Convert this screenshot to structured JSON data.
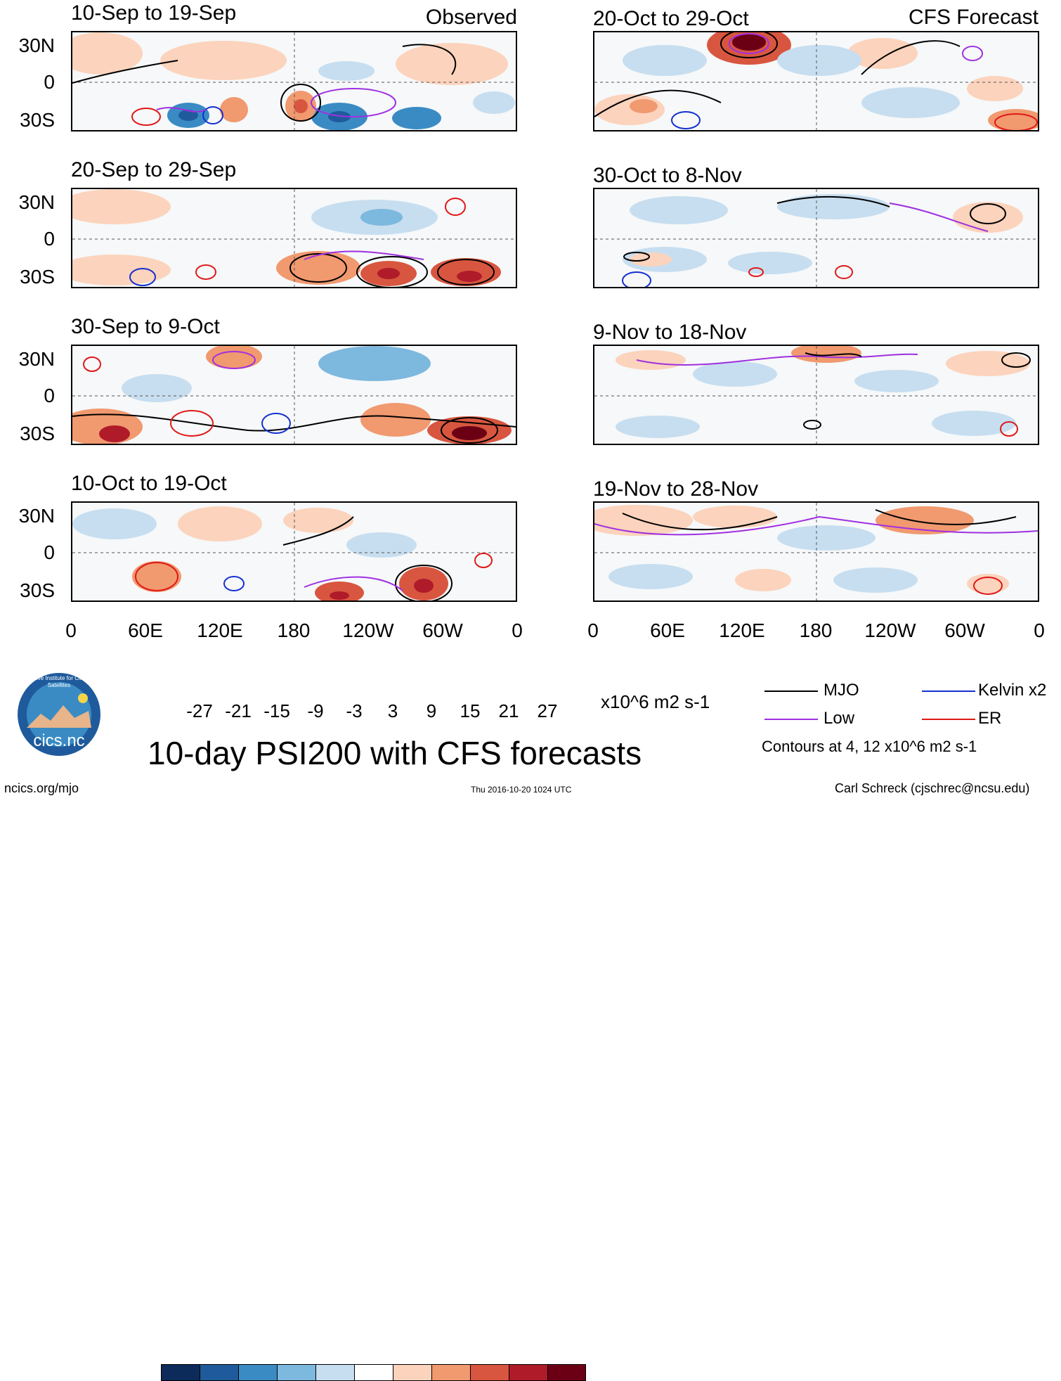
{
  "panels": {
    "obs1_title": "10-Sep to 19-Sep",
    "obs1_tag": "Observed",
    "obs2_title": "20-Sep to 29-Sep",
    "obs3_title": "30-Sep to 9-Oct",
    "obs4_title": "10-Oct to 19-Oct",
    "fc1_title": "20-Oct to 29-Oct",
    "fc1_tag": "CFS Forecast",
    "fc2_title": "30-Oct to 8-Nov",
    "fc3_title": "9-Nov to 18-Nov",
    "fc4_title": "19-Nov to 28-Nov"
  },
  "lat_labels": [
    "30N",
    "0",
    "30S"
  ],
  "lon_labels": [
    "0",
    "60E",
    "120E",
    "180",
    "120W",
    "60W",
    "0"
  ],
  "colorbar": {
    "colors": [
      "#0d2b5a",
      "#1f5b9c",
      "#3a8bc4",
      "#7db8de",
      "#c7def0",
      "#ffffff",
      "#fcd3bc",
      "#f1996f",
      "#d8563f",
      "#b01b2a",
      "#6b0014"
    ],
    "ticks": [
      "-27",
      "-21",
      "-15",
      "-9",
      "-3",
      "3",
      "9",
      "15",
      "21",
      "27"
    ],
    "units": "x10^6 m2 s-1"
  },
  "main_title": "10-day PSI200 with CFS forecasts",
  "legend": {
    "mjo": "MJO",
    "kelvin": "Kelvin x2",
    "low": "Low",
    "er": "ER",
    "mjo_color": "#000000",
    "kelvin_color": "#1530d0",
    "low_color": "#a030e0",
    "er_color": "#e01818",
    "note": "Contours at 4, 12 x10^6 m2 s-1"
  },
  "logo": {
    "ring_text": "Cooperative Institute for Climate and Satellites",
    "name": "cics.nc"
  },
  "footer": {
    "url": "ncics.org/mjo",
    "timestamp": "Thu 2016-10-20 1024 UTC",
    "author": "Carl Schreck (cjschrec@ncsu.edu)"
  }
}
